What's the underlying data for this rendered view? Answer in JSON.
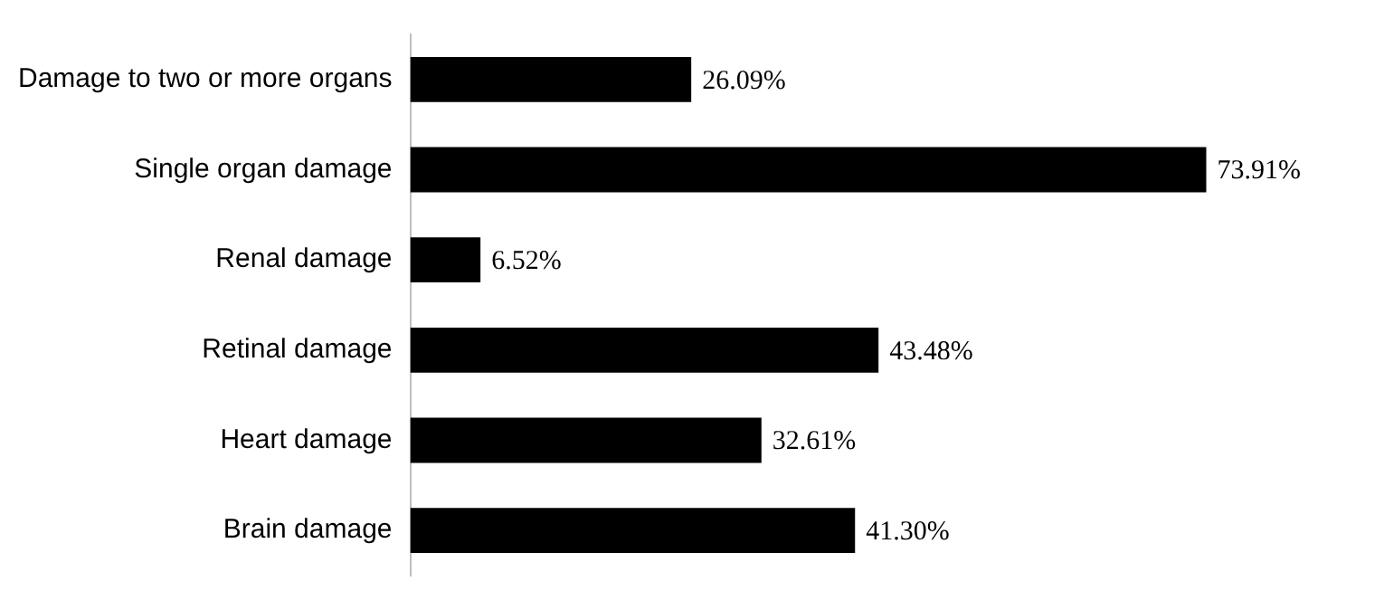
{
  "chart_data": {
    "type": "bar",
    "orientation": "horizontal",
    "categories": [
      "Damage to two or more organs",
      "Single organ damage",
      "Renal damage",
      "Retinal damage",
      "Heart damage",
      "Brain damage"
    ],
    "values": [
      26.09,
      73.91,
      6.52,
      43.48,
      32.61,
      41.3
    ],
    "value_labels": [
      "26.09%",
      "73.91%",
      "6.52%",
      "43.48%",
      "32.61%",
      "41.30%"
    ],
    "color": "#000000",
    "grid": false,
    "legend": false,
    "tick_labels": "y"
  }
}
